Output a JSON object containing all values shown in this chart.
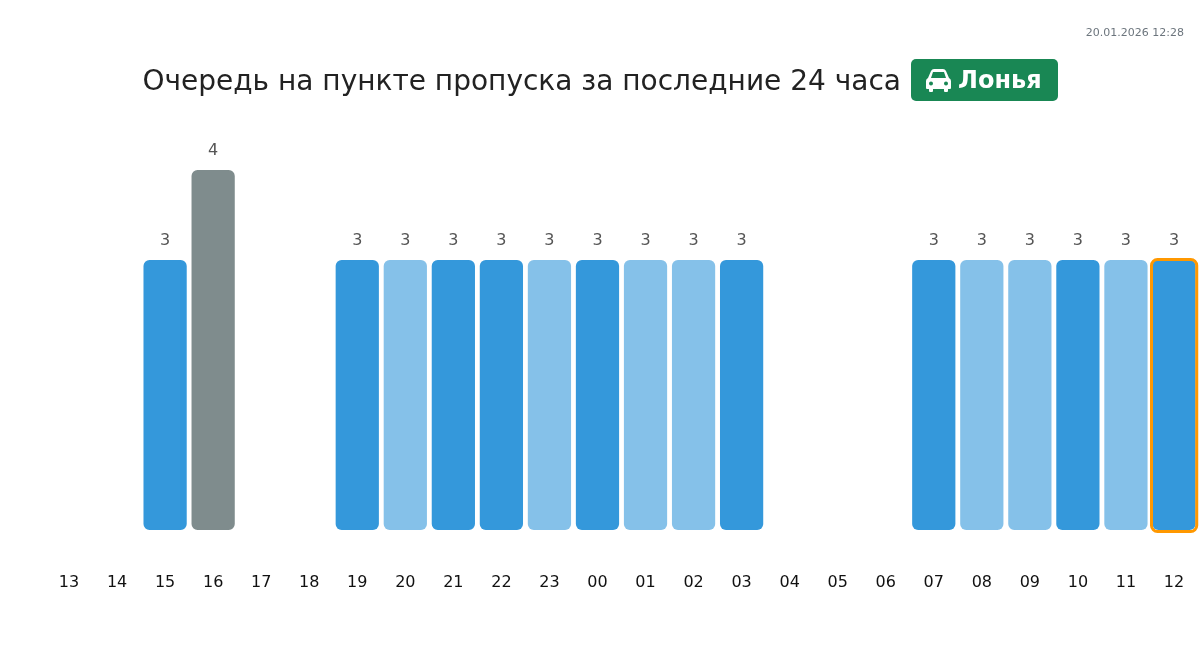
{
  "chart_data": {
    "type": "bar",
    "title": "Очередь на пункте пропуска за последние 24 часа",
    "subtitle": "Лонья",
    "annotations": [
      "20.01.2026 12:28"
    ],
    "categories": [
      "13",
      "14",
      "15",
      "16",
      "17",
      "18",
      "19",
      "20",
      "21",
      "22",
      "23",
      "00",
      "01",
      "02",
      "03",
      "04",
      "05",
      "06",
      "07",
      "08",
      "09",
      "10",
      "11",
      "12"
    ],
    "values": [
      null,
      null,
      3,
      4,
      null,
      null,
      3,
      3,
      3,
      3,
      3,
      3,
      3,
      3,
      3,
      null,
      null,
      null,
      3,
      3,
      3,
      3,
      3,
      3
    ],
    "colors": [
      null,
      null,
      "#3498db",
      "#7f8c8d",
      null,
      null,
      "#3498db",
      "#85c1e9",
      "#3498db",
      "#3498db",
      "#85c1e9",
      "#3498db",
      "#85c1e9",
      "#85c1e9",
      "#3498db",
      null,
      null,
      null,
      "#3498db",
      "#85c1e9",
      "#85c1e9",
      "#3498db",
      "#85c1e9",
      "#3498db"
    ],
    "data_labels": true
  }
}
